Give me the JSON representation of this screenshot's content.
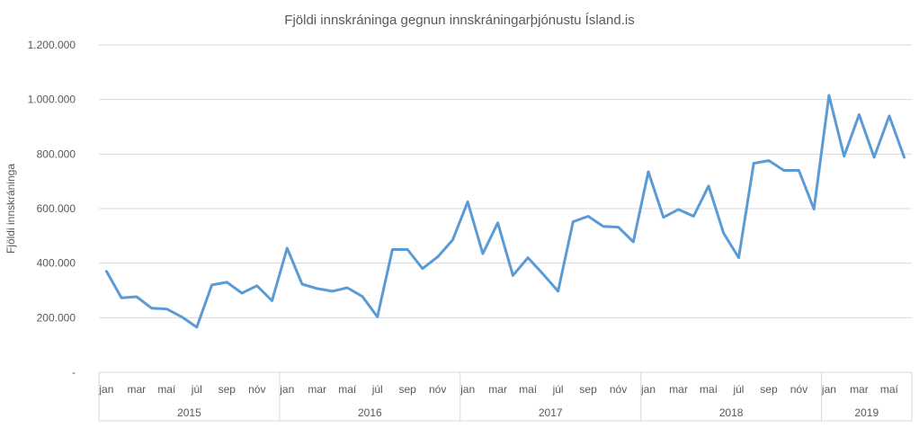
{
  "chart_data": {
    "type": "line",
    "title": "Fjöldi innskráninga gegnun innskráningarþjónustu Ísland.is",
    "xlabel": "",
    "ylabel": "Fjöldi innskráninga",
    "ylim": [
      0,
      1200000
    ],
    "yticks": [
      0,
      200000,
      400000,
      600000,
      800000,
      1000000,
      1200000
    ],
    "ytick_labels": [
      "-",
      "200.000",
      "400.000",
      "600.000",
      "800.000",
      "1.000.000",
      "1.200.000"
    ],
    "grid": true,
    "legend": "none",
    "color": "#5b9bd5",
    "month_tick_labels": [
      "jan",
      "mar",
      "maí",
      "júl",
      "sep",
      "nóv"
    ],
    "years": [
      {
        "label": "2015",
        "months": 12
      },
      {
        "label": "2016",
        "months": 12
      },
      {
        "label": "2017",
        "months": 12
      },
      {
        "label": "2018",
        "months": 12
      },
      {
        "label": "2019",
        "months": 6
      }
    ],
    "x": [
      "2015-01",
      "2015-02",
      "2015-03",
      "2015-04",
      "2015-05",
      "2015-06",
      "2015-07",
      "2015-08",
      "2015-09",
      "2015-10",
      "2015-11",
      "2015-12",
      "2016-01",
      "2016-02",
      "2016-03",
      "2016-04",
      "2016-05",
      "2016-06",
      "2016-07",
      "2016-08",
      "2016-09",
      "2016-10",
      "2016-11",
      "2016-12",
      "2017-01",
      "2017-02",
      "2017-03",
      "2017-04",
      "2017-05",
      "2017-06",
      "2017-07",
      "2017-08",
      "2017-09",
      "2017-10",
      "2017-11",
      "2017-12",
      "2018-01",
      "2018-02",
      "2018-03",
      "2018-04",
      "2018-05",
      "2018-06",
      "2018-07",
      "2018-08",
      "2018-09",
      "2018-10",
      "2018-11",
      "2018-12",
      "2019-01",
      "2019-02",
      "2019-03",
      "2019-04",
      "2019-05",
      "2019-06"
    ],
    "series": [
      {
        "values": [
          370000,
          273000,
          277000,
          235000,
          232000,
          203000,
          165000,
          320000,
          330000,
          290000,
          317000,
          262000,
          455000,
          323000,
          307000,
          297000,
          310000,
          278000,
          203000,
          450000,
          450000,
          380000,
          423000,
          485000,
          625000,
          435000,
          548000,
          355000,
          420000,
          360000,
          297000,
          552000,
          572000,
          535000,
          532000,
          478000,
          735000,
          568000,
          597000,
          572000,
          683000,
          510000,
          420000,
          766000,
          776000,
          740000,
          740000,
          598000,
          1015000,
          792000,
          945000,
          788000,
          940000,
          788000
        ]
      }
    ]
  }
}
